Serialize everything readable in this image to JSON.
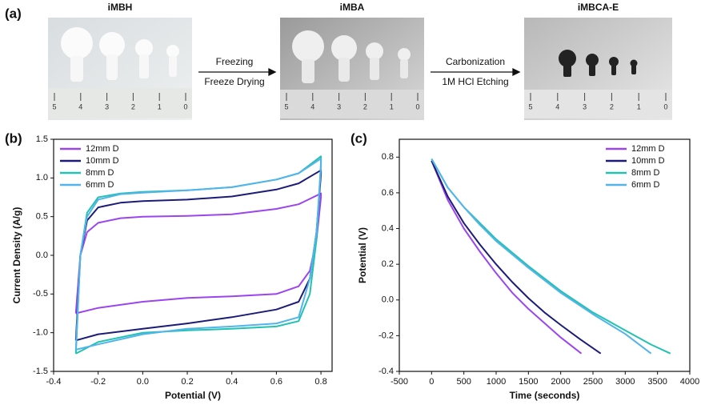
{
  "panel_a": {
    "label": "(a)",
    "samples": [
      "iMBH",
      "iMBA",
      "iMBCA-E"
    ],
    "steps": [
      [
        "Freezing",
        "Freeze Drying"
      ],
      [
        "Carbonization",
        "1M HCl Etching"
      ]
    ],
    "ruler_labels": [
      "5",
      "4",
      "3",
      "2",
      "1",
      "0"
    ]
  },
  "chart_data": [
    {
      "type": "line",
      "panel": "(b)",
      "x_label": "Potential (V)",
      "y_label": "Current Density (A/g)",
      "xlim": [
        -0.4,
        0.85
      ],
      "xticks": [
        -0.4,
        -0.2,
        {
          "value": 0,
          "label": "0.0"
        },
        0.2,
        0.4,
        0.6,
        0.8
      ],
      "ylim": [
        -1.5,
        1.5
      ],
      "yticks": [
        -1.5,
        {
          "value": -1,
          "label": "-1.0"
        },
        -0.5,
        {
          "value": 0,
          "label": "0.0"
        },
        0.5,
        {
          "value": 1,
          "label": "1.0"
        },
        1.5
      ],
      "legend": "upper left",
      "series": [
        {
          "name": "12mm D",
          "color": "#9b45ee",
          "x": [
            -0.3,
            -0.28,
            -0.25,
            -0.2,
            -0.1,
            0,
            0.2,
            0.4,
            0.6,
            0.7,
            0.8,
            0.8,
            0.78,
            0.75,
            0.7,
            0.6,
            0.4,
            0.2,
            0,
            -0.2,
            -0.3
          ],
          "values": [
            -0.75,
            0,
            0.3,
            0.42,
            0.48,
            0.5,
            0.51,
            0.53,
            0.6,
            0.66,
            0.8,
            0.75,
            0.2,
            -0.2,
            -0.4,
            -0.5,
            -0.53,
            -0.55,
            -0.6,
            -0.68,
            -0.75
          ]
        },
        {
          "name": "10mm D",
          "color": "#1c1c78",
          "x": [
            -0.3,
            -0.28,
            -0.25,
            -0.2,
            -0.1,
            0,
            0.2,
            0.4,
            0.6,
            0.7,
            0.8,
            0.8,
            0.78,
            0.75,
            0.7,
            0.6,
            0.4,
            0.2,
            0,
            -0.2,
            -0.3
          ],
          "values": [
            -1.1,
            0,
            0.45,
            0.62,
            0.68,
            0.7,
            0.72,
            0.76,
            0.85,
            0.93,
            1.1,
            1.05,
            0.3,
            -0.3,
            -0.6,
            -0.7,
            -0.8,
            -0.88,
            -0.95,
            -1.02,
            -1.1
          ]
        },
        {
          "name": "8mm D",
          "color": "#22c2b2",
          "x": [
            -0.3,
            -0.28,
            -0.25,
            -0.2,
            -0.1,
            0,
            0.2,
            0.4,
            0.6,
            0.7,
            0.8,
            0.8,
            0.78,
            0.75,
            0.7,
            0.6,
            0.4,
            0.2,
            0,
            -0.2,
            -0.3
          ],
          "values": [
            -1.27,
            0,
            0.55,
            0.75,
            0.8,
            0.82,
            0.84,
            0.88,
            0.98,
            1.06,
            1.28,
            1.2,
            0.2,
            -0.5,
            -0.85,
            -0.92,
            -0.95,
            -0.97,
            -1,
            -1.12,
            -1.27
          ]
        },
        {
          "name": "6mm D",
          "color": "#52b4ea",
          "x": [
            -0.3,
            -0.28,
            -0.25,
            -0.2,
            -0.1,
            0,
            0.2,
            0.4,
            0.6,
            0.7,
            0.8,
            0.8,
            0.78,
            0.75,
            0.7,
            0.6,
            0.4,
            0.2,
            0,
            -0.2,
            -0.3
          ],
          "values": [
            -1.22,
            0,
            0.5,
            0.72,
            0.79,
            0.81,
            0.84,
            0.88,
            0.98,
            1.06,
            1.25,
            1.15,
            0.3,
            -0.3,
            -0.8,
            -0.88,
            -0.92,
            -0.95,
            -1.02,
            -1.15,
            -1.22
          ]
        }
      ]
    },
    {
      "type": "line",
      "panel": "(c)",
      "x_label": "Time (seconds)",
      "y_label": "Potential (V)",
      "xlim": [
        -500,
        4000
      ],
      "xticks": [
        -500,
        0,
        500,
        1000,
        1500,
        2000,
        2500,
        3000,
        3500,
        4000
      ],
      "ylim": [
        -0.4,
        0.9
      ],
      "yticks": [
        -0.4,
        -0.2,
        {
          "value": 0,
          "label": "0.0"
        },
        0.2,
        0.4,
        0.6,
        0.8
      ],
      "legend": "upper right",
      "series": [
        {
          "name": "12mm D",
          "color": "#9b45ee",
          "x": [
            0,
            250,
            500,
            750,
            1000,
            1250,
            1500,
            1750,
            2000,
            2320
          ],
          "values": [
            0.78,
            0.56,
            0.4,
            0.27,
            0.15,
            0.04,
            -0.05,
            -0.13,
            -0.21,
            -0.3
          ]
        },
        {
          "name": "10mm D",
          "color": "#1c1c78",
          "x": [
            0,
            250,
            500,
            750,
            1000,
            1250,
            1500,
            1750,
            2000,
            2300,
            2620
          ],
          "values": [
            0.78,
            0.58,
            0.43,
            0.31,
            0.2,
            0.1,
            0.01,
            -0.07,
            -0.14,
            -0.22,
            -0.3
          ]
        },
        {
          "name": "8mm D",
          "color": "#22c2b2",
          "x": [
            0,
            250,
            500,
            750,
            1000,
            1500,
            2000,
            2500,
            3000,
            3400,
            3700
          ],
          "values": [
            0.79,
            0.63,
            0.52,
            0.43,
            0.34,
            0.19,
            0.05,
            -0.07,
            -0.17,
            -0.25,
            -0.3
          ]
        },
        {
          "name": "6mm D",
          "color": "#52b4ea",
          "x": [
            0,
            250,
            500,
            750,
            1000,
            1500,
            2000,
            2500,
            3000,
            3400
          ],
          "values": [
            0.79,
            0.63,
            0.52,
            0.42,
            0.33,
            0.18,
            0.04,
            -0.08,
            -0.19,
            -0.3
          ]
        }
      ]
    }
  ]
}
